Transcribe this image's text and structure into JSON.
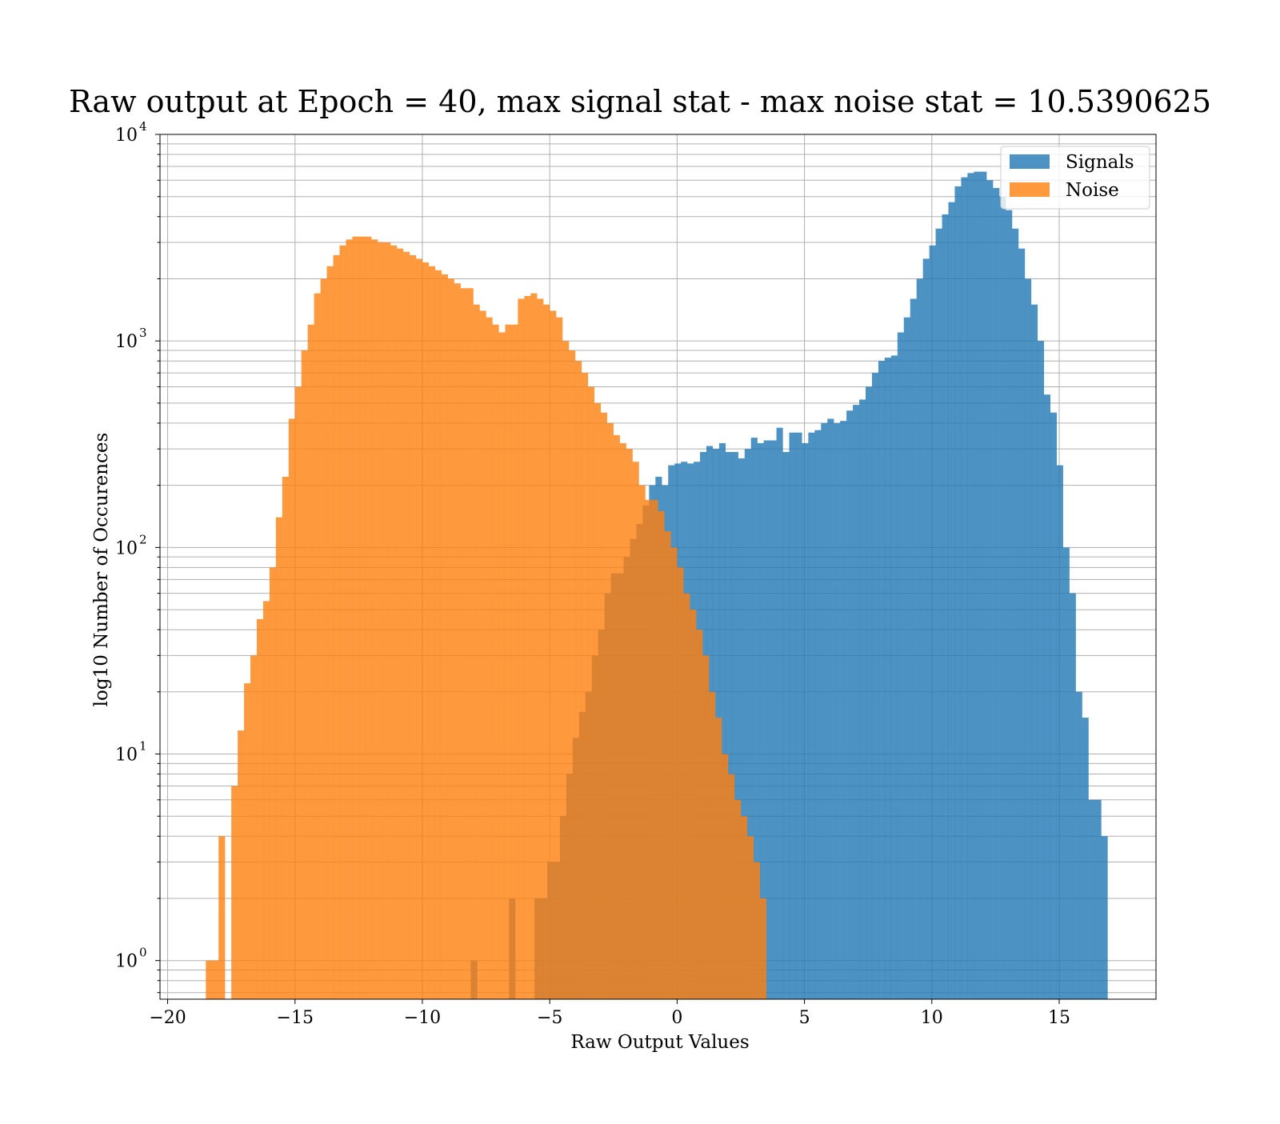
{
  "chart_data": {
    "type": "bar",
    "title": "Raw output at Epoch = 40, max signal stat - max noise stat = 10.5390625",
    "xlabel": "Raw Output Values",
    "ylabel": "log10 Number of Occurences",
    "xlim": [
      -20.3,
      18.8
    ],
    "ylim": [
      0.65,
      10000
    ],
    "yscale": "log",
    "grid": true,
    "grid_minor": true,
    "legend_position": "top-right",
    "x_ticks": [
      {
        "value": -20,
        "label": "−20"
      },
      {
        "value": -15,
        "label": "−15"
      },
      {
        "value": -10,
        "label": "−10"
      },
      {
        "value": -5,
        "label": "−5"
      },
      {
        "value": 0,
        "label": "0"
      },
      {
        "value": 5,
        "label": "5"
      },
      {
        "value": 10,
        "label": "10"
      },
      {
        "value": 15,
        "label": "15"
      }
    ],
    "y_ticks": [
      {
        "value": 1,
        "base": "10",
        "exp": "0"
      },
      {
        "value": 10,
        "base": "10",
        "exp": "1"
      },
      {
        "value": 100,
        "base": "10",
        "exp": "2"
      },
      {
        "value": 1000,
        "base": "10",
        "exp": "3"
      },
      {
        "value": 10000,
        "base": "10",
        "exp": "4"
      }
    ],
    "series": [
      {
        "name": "Signals",
        "color": "#1f77b4",
        "opacity": 0.8,
        "bin_start": -8.1,
        "bin_width": 0.25,
        "counts": [
          1,
          0,
          0,
          0,
          0,
          0,
          2,
          0,
          0,
          0,
          2,
          2,
          3,
          3,
          5,
          8,
          12,
          16,
          20,
          30,
          40,
          60,
          75,
          75,
          90,
          110,
          130,
          160,
          200,
          220,
          200,
          250,
          255,
          260,
          255,
          260,
          290,
          310,
          300,
          320,
          290,
          290,
          270,
          300,
          340,
          320,
          330,
          330,
          380,
          290,
          360,
          360,
          320,
          360,
          370,
          400,
          420,
          400,
          410,
          460,
          490,
          520,
          600,
          700,
          800,
          830,
          850,
          1100,
          1300,
          1600,
          2000,
          2500,
          2900,
          3500,
          4100,
          4700,
          5600,
          6200,
          6500,
          6600,
          6600,
          6000,
          5500,
          5000,
          4300,
          3500,
          2800,
          2000,
          1500,
          1000,
          550,
          450,
          250,
          100,
          60,
          20,
          15,
          6,
          6,
          4
        ]
      },
      {
        "name": "Noise",
        "color": "#ff7f0e",
        "opacity": 0.8,
        "bin_start": -18.5,
        "bin_width": 0.25,
        "counts": [
          1,
          1,
          4,
          0,
          7,
          13,
          22,
          30,
          45,
          55,
          80,
          140,
          220,
          420,
          600,
          900,
          1200,
          1700,
          2000,
          2300,
          2600,
          2900,
          3100,
          3200,
          3200,
          3200,
          3100,
          3000,
          3000,
          2900,
          2800,
          2700,
          2600,
          2500,
          2400,
          2300,
          2200,
          2100,
          2000,
          1900,
          1800,
          1800,
          1500,
          1400,
          1300,
          1200,
          1100,
          1200,
          1200,
          1600,
          1650,
          1700,
          1600,
          1500,
          1400,
          1300,
          1000,
          900,
          800,
          700,
          600,
          500,
          450,
          400,
          350,
          320,
          300,
          260,
          200,
          170,
          170,
          150,
          120,
          100,
          80,
          60,
          50,
          40,
          30,
          20,
          15,
          10,
          8,
          6,
          5,
          4,
          3,
          2
        ]
      }
    ]
  }
}
